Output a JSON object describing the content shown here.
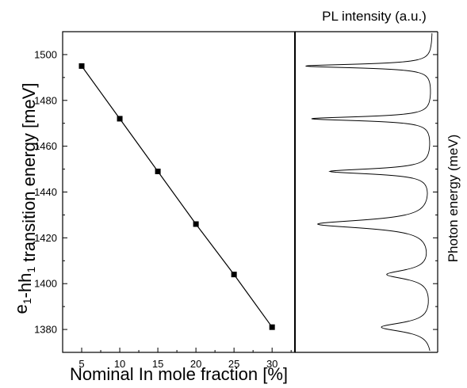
{
  "chart_data": [
    {
      "type": "line",
      "x": [
        5,
        10,
        15,
        20,
        25,
        30
      ],
      "y": [
        1495,
        1472,
        1449,
        1426,
        1404,
        1381
      ],
      "xlabel": "Nominal In mole fraction [%]",
      "ylabel": {
        "parts": [
          {
            "text": "e",
            "sub": false
          },
          {
            "text": "1",
            "sub": true
          },
          {
            "text": "-hh",
            "sub": false
          },
          {
            "text": "1",
            "sub": true
          },
          {
            "text": " transition energy [meV]",
            "sub": false
          }
        ]
      },
      "xlim": [
        2.5,
        33
      ],
      "ylim": [
        1370,
        1510
      ],
      "xticks": [
        5,
        10,
        15,
        20,
        25,
        30
      ],
      "yticks": [
        1380,
        1400,
        1420,
        1440,
        1460,
        1480,
        1500
      ],
      "marker": "square",
      "grid": false,
      "line_color": "#000000"
    },
    {
      "type": "line",
      "title": "PL intensity (a.u.)",
      "ylabel": "Photon energy (meV)",
      "ylim": [
        1370,
        1510
      ],
      "orientation": "vertical-spectrum",
      "peaks": [
        {
          "energy": 1495,
          "intensity": 1.0,
          "width": 1.0
        },
        {
          "energy": 1472,
          "intensity": 0.95,
          "width": 1.1
        },
        {
          "energy": 1449,
          "intensity": 0.8,
          "width": 1.4
        },
        {
          "energy": 1426,
          "intensity": 0.9,
          "width": 2.2
        },
        {
          "energy": 1404,
          "intensity": 0.35,
          "width": 2.4
        },
        {
          "energy": 1381,
          "intensity": 0.4,
          "width": 2.4
        }
      ],
      "line_color": "#000000"
    }
  ]
}
